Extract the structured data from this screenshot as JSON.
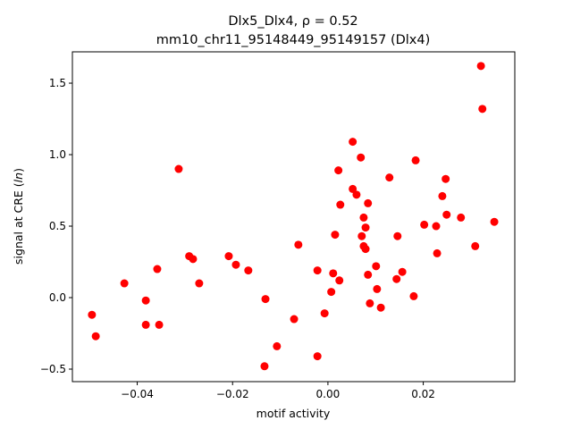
{
  "chart_data": {
    "type": "scatter",
    "title_line1": "Dlx5_Dlx4, ρ = 0.52",
    "title_line2": "mm10_chr11_95148449_95149157 (Dlx4)",
    "xlabel": "motif activity",
    "ylabel": {
      "prefix": "signal at CRE (",
      "italic": "ln",
      "suffix": ")"
    },
    "xlim": [
      -0.0536,
      0.0392
    ],
    "ylim": [
      -0.5875,
      1.719
    ],
    "xticks": [
      {
        "v": -0.04,
        "label": "−0.04"
      },
      {
        "v": -0.02,
        "label": "−0.02"
      },
      {
        "v": 0.0,
        "label": "0.00"
      },
      {
        "v": 0.02,
        "label": "0.02"
      }
    ],
    "yticks": [
      {
        "v": -0.5,
        "label": "−0.5"
      },
      {
        "v": 0.0,
        "label": "0.0"
      },
      {
        "v": 0.5,
        "label": "0.5"
      },
      {
        "v": 1.0,
        "label": "1.0"
      },
      {
        "v": 1.5,
        "label": "1.5"
      }
    ],
    "grid": false,
    "marker_color": "#ff0000",
    "points": [
      [
        -0.0495,
        -0.12
      ],
      [
        -0.0487,
        -0.27
      ],
      [
        -0.0427,
        0.1
      ],
      [
        -0.0382,
        -0.02
      ],
      [
        -0.0382,
        -0.19
      ],
      [
        -0.0358,
        0.2
      ],
      [
        -0.0354,
        -0.19
      ],
      [
        -0.0313,
        0.9
      ],
      [
        -0.0291,
        0.29
      ],
      [
        -0.0283,
        0.27
      ],
      [
        -0.027,
        0.1
      ],
      [
        -0.0208,
        0.29
      ],
      [
        -0.0193,
        0.23
      ],
      [
        -0.0167,
        0.19
      ],
      [
        -0.0131,
        -0.01
      ],
      [
        -0.0133,
        -0.48
      ],
      [
        -0.0107,
        -0.34
      ],
      [
        -0.0071,
        -0.15
      ],
      [
        -0.0062,
        0.37
      ],
      [
        -0.0022,
        0.19
      ],
      [
        -0.0022,
        -0.41
      ],
      [
        -0.0007,
        -0.11
      ],
      [
        0.0007,
        0.04
      ],
      [
        0.0011,
        0.17
      ],
      [
        0.0015,
        0.44
      ],
      [
        0.0022,
        0.89
      ],
      [
        0.0024,
        0.12
      ],
      [
        0.0026,
        0.65
      ],
      [
        0.0052,
        1.09
      ],
      [
        0.0052,
        0.76
      ],
      [
        0.006,
        0.72
      ],
      [
        0.0069,
        0.98
      ],
      [
        0.0071,
        0.43
      ],
      [
        0.0075,
        0.56
      ],
      [
        0.0075,
        0.36
      ],
      [
        0.0079,
        0.49
      ],
      [
        0.0079,
        0.34
      ],
      [
        0.0084,
        0.66
      ],
      [
        0.0084,
        0.16
      ],
      [
        0.0088,
        -0.04
      ],
      [
        0.0101,
        0.22
      ],
      [
        0.0103,
        0.06
      ],
      [
        0.0111,
        -0.07
      ],
      [
        0.0129,
        0.84
      ],
      [
        0.0146,
        0.43
      ],
      [
        0.0144,
        0.13
      ],
      [
        0.0156,
        0.18
      ],
      [
        0.018,
        0.01
      ],
      [
        0.0184,
        0.96
      ],
      [
        0.0202,
        0.51
      ],
      [
        0.0227,
        0.5
      ],
      [
        0.0229,
        0.31
      ],
      [
        0.024,
        0.71
      ],
      [
        0.0247,
        0.83
      ],
      [
        0.0249,
        0.58
      ],
      [
        0.0279,
        0.56
      ],
      [
        0.0309,
        0.36
      ],
      [
        0.0321,
        1.62
      ],
      [
        0.0324,
        1.32
      ],
      [
        0.0349,
        0.53
      ]
    ]
  }
}
